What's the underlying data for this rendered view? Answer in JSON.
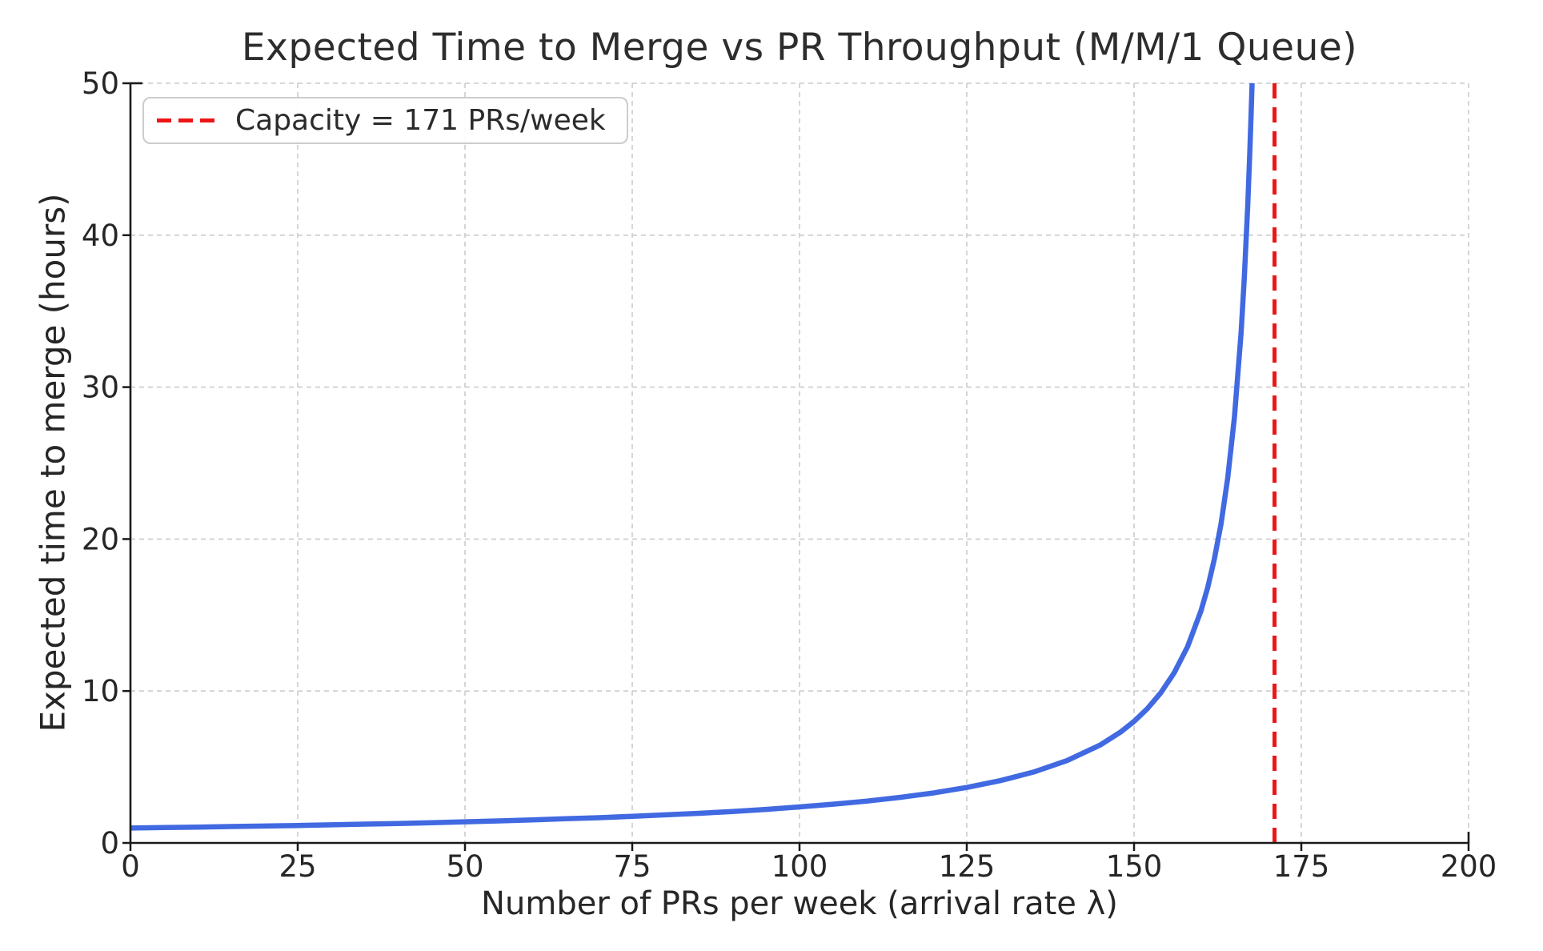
{
  "figure": {
    "background": "#ffffff",
    "text_color": "#262626",
    "spine_color": "#1a1a1a"
  },
  "chart_data": {
    "type": "line",
    "title": "Expected Time to Merge vs PR Throughput (M/M/1 Queue)",
    "xlabel": "Number of PRs per week (arrival rate λ)",
    "ylabel": "Expected time to merge (hours)",
    "xlim": [
      0,
      200
    ],
    "ylim": [
      0,
      50
    ],
    "x_ticks": [
      0,
      25,
      50,
      75,
      100,
      125,
      150,
      175,
      200
    ],
    "y_ticks": [
      0,
      10,
      20,
      30,
      40,
      50
    ],
    "grid": {
      "visible": true,
      "linestyle": "dashed",
      "color": "#cbcbd0"
    },
    "legend": {
      "position": "upper-left",
      "entries": [
        {
          "label": "Capacity = 171 PRs/week",
          "marker": "dashed-line",
          "color": "#ed1515"
        }
      ]
    },
    "capacity_line": {
      "x": 171,
      "orientation": "vertical",
      "linestyle": "dashed",
      "color": "#ed1515"
    },
    "series": [
      {
        "name": "expected_time_to_merge",
        "color": "#4169e1",
        "linewidth": 6.5,
        "points": [
          [
            0,
            0.98
          ],
          [
            5,
            1.01
          ],
          [
            10,
            1.04
          ],
          [
            15,
            1.08
          ],
          [
            20,
            1.11
          ],
          [
            25,
            1.15
          ],
          [
            30,
            1.19
          ],
          [
            35,
            1.24
          ],
          [
            40,
            1.28
          ],
          [
            45,
            1.33
          ],
          [
            50,
            1.39
          ],
          [
            55,
            1.45
          ],
          [
            60,
            1.51
          ],
          [
            65,
            1.59
          ],
          [
            70,
            1.66
          ],
          [
            75,
            1.75
          ],
          [
            80,
            1.85
          ],
          [
            85,
            1.95
          ],
          [
            90,
            2.07
          ],
          [
            95,
            2.21
          ],
          [
            100,
            2.37
          ],
          [
            105,
            2.55
          ],
          [
            110,
            2.75
          ],
          [
            115,
            3.0
          ],
          [
            120,
            3.29
          ],
          [
            125,
            3.65
          ],
          [
            130,
            4.1
          ],
          [
            135,
            4.67
          ],
          [
            140,
            5.42
          ],
          [
            145,
            6.46
          ],
          [
            148,
            7.3
          ],
          [
            150,
            8.0
          ],
          [
            152,
            8.84
          ],
          [
            154,
            9.88
          ],
          [
            156,
            11.2
          ],
          [
            158,
            12.92
          ],
          [
            160,
            15.27
          ],
          [
            161,
            16.8
          ],
          [
            162,
            18.67
          ],
          [
            163,
            21.0
          ],
          [
            164,
            24.0
          ],
          [
            165,
            28.0
          ],
          [
            166,
            33.6
          ],
          [
            166.5,
            37.33
          ],
          [
            167,
            42.0
          ],
          [
            167.3,
            45.4
          ],
          [
            167.5,
            48.0
          ],
          [
            167.64,
            50.0
          ]
        ]
      }
    ]
  }
}
